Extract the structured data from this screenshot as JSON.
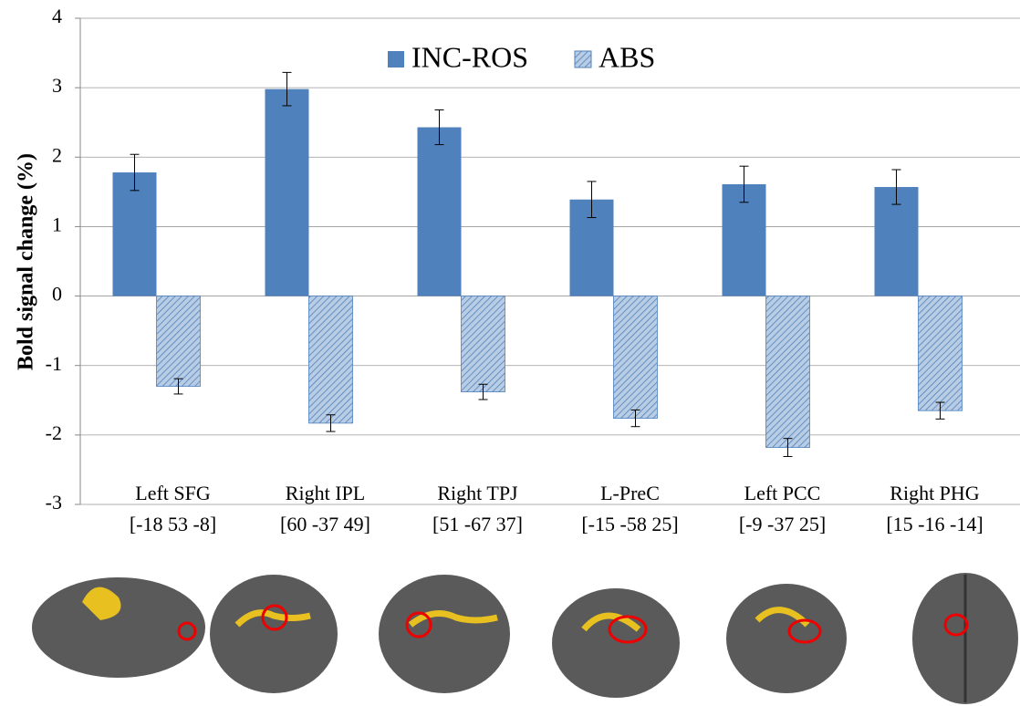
{
  "chart_data": {
    "type": "bar",
    "y_label": "Bold signal change (%)",
    "categories": [
      "Left SFG",
      "Right IPL",
      "Right TPJ",
      "L-PreC",
      "Left PCC",
      "Right PHG"
    ],
    "coordinates": [
      "[-18 53 -8]",
      "[60 -37 49]",
      "[51 -67 37]",
      "[-15 -58 25]",
      "[-9 -37 25]",
      "[15 -16 -14]"
    ],
    "series": [
      {
        "name": "INC-ROS",
        "color": "#4f81bd",
        "values": [
          1.78,
          2.98,
          2.43,
          1.39,
          1.61,
          1.57
        ],
        "errors": [
          0.26,
          0.24,
          0.25,
          0.26,
          0.26,
          0.25
        ]
      },
      {
        "name": "ABS",
        "color": "#b8cce4",
        "hatch": "#4f81bd",
        "values": [
          -1.3,
          -1.83,
          -1.38,
          -1.76,
          -2.18,
          -1.65
        ],
        "errors": [
          0.11,
          0.12,
          0.11,
          0.12,
          0.13,
          0.12
        ]
      }
    ],
    "ylim": [
      -3,
      4
    ],
    "yticks": [
      -3,
      -2,
      -1,
      0,
      1,
      2,
      3,
      4
    ],
    "grid": true,
    "legend": "top"
  }
}
